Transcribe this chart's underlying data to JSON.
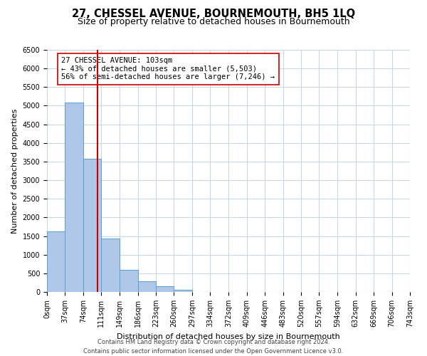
{
  "title": "27, CHESSEL AVENUE, BOURNEMOUTH, BH5 1LQ",
  "subtitle": "Size of property relative to detached houses in Bournemouth",
  "xlabel": "Distribution of detached houses by size in Bournemouth",
  "ylabel": "Number of detached properties",
  "bin_edges": [
    0,
    37,
    74,
    111,
    149,
    186,
    223,
    260,
    297,
    334,
    372,
    409,
    446,
    483,
    520,
    557,
    594,
    632,
    669,
    706,
    743
  ],
  "bin_labels": [
    "0sqm",
    "37sqm",
    "74sqm",
    "111sqm",
    "149sqm",
    "186sqm",
    "223sqm",
    "260sqm",
    "297sqm",
    "334sqm",
    "372sqm",
    "409sqm",
    "446sqm",
    "483sqm",
    "520sqm",
    "557sqm",
    "594sqm",
    "632sqm",
    "669sqm",
    "706sqm",
    "743sqm"
  ],
  "bar_heights": [
    1625,
    5080,
    3580,
    1430,
    590,
    295,
    145,
    60,
    0,
    0,
    0,
    0,
    0,
    0,
    0,
    0,
    0,
    0,
    0,
    0
  ],
  "bar_color": "#aec6e8",
  "bar_edge_color": "#5a9fd4",
  "property_line_x": 103,
  "property_line_color": "#cc0000",
  "annotation_title": "27 CHESSEL AVENUE: 103sqm",
  "annotation_line1": "← 43% of detached houses are smaller (5,503)",
  "annotation_line2": "56% of semi-detached houses are larger (7,246) →",
  "ylim": [
    0,
    6500
  ],
  "yticks": [
    0,
    500,
    1000,
    1500,
    2000,
    2500,
    3000,
    3500,
    4000,
    4500,
    5000,
    5500,
    6000,
    6500
  ],
  "footer_line1": "Contains HM Land Registry data © Crown copyright and database right 2024.",
  "footer_line2": "Contains public sector information licensed under the Open Government Licence v3.0.",
  "background_color": "#ffffff",
  "grid_color": "#c8d8e8",
  "title_fontsize": 10.5,
  "subtitle_fontsize": 9,
  "axis_label_fontsize": 8,
  "tick_fontsize": 7,
  "annotation_fontsize": 7.5,
  "footer_fontsize": 6
}
